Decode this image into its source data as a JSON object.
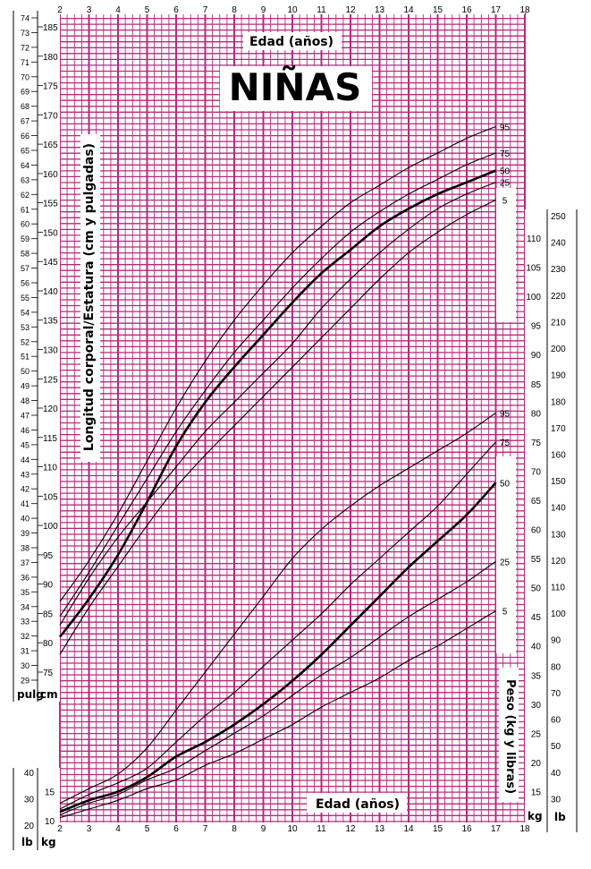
{
  "chart_data": {
    "type": "line",
    "title": "NIÑAS",
    "top_axis_label": "Edad (años)",
    "bottom_axis_label": "Edad (años)",
    "left_axis_label": "Longitud corporal/Estatura (cm y pulgadas)",
    "right_axis_label": "Peso (kg y libras)",
    "x_ticks": [
      2,
      3,
      4,
      5,
      6,
      7,
      8,
      9,
      10,
      11,
      12,
      13,
      14,
      15,
      16,
      17,
      18
    ],
    "xlim": [
      2,
      18
    ],
    "unit_labels": {
      "pulg": "pulg",
      "cm": "cm",
      "lb": "lb",
      "kg": "kg"
    },
    "stature_axis": {
      "cm_range": [
        75,
        185
      ],
      "inch_range": [
        29,
        74
      ],
      "cm_ticks": [
        75,
        80,
        85,
        90,
        95,
        100,
        105,
        110,
        115,
        120,
        125,
        130,
        135,
        140,
        145,
        150,
        155,
        160,
        165,
        170,
        175,
        180,
        185
      ]
    },
    "weight_axis": {
      "kg_range": [
        10,
        110
      ],
      "lb_range": [
        20,
        250
      ],
      "left_kg_ticks": [
        10,
        15
      ],
      "left_lb_ticks": [
        20,
        30,
        40
      ],
      "right_kg_ticks": [
        15,
        20,
        25,
        30,
        35,
        40,
        45,
        50,
        55,
        60,
        65,
        70,
        75,
        80,
        85,
        90,
        95,
        100,
        105,
        110
      ],
      "right_lb_ticks": [
        30,
        40,
        50,
        60,
        70,
        80,
        90,
        100,
        110,
        120,
        130,
        140,
        150,
        160,
        170,
        180,
        190,
        200,
        210,
        220,
        230,
        240,
        250
      ]
    },
    "stature_series": [
      {
        "name": "5",
        "x": [
          2,
          3,
          4,
          5,
          6,
          7,
          8,
          9,
          10,
          11,
          12,
          13,
          14,
          15,
          16,
          17
        ],
        "values": [
          78,
          86,
          93,
          100,
          106.5,
          112,
          117,
          122,
          127,
          132,
          137,
          142,
          146.5,
          150,
          153,
          155.5
        ]
      },
      {
        "name": "25",
        "x": [
          2,
          3,
          4,
          5,
          6,
          7,
          8,
          9,
          10,
          11,
          12,
          13,
          14,
          15,
          16,
          17
        ],
        "values": [
          83,
          91,
          98,
          104,
          110,
          116,
          121,
          126,
          131,
          137,
          142,
          146.5,
          150.5,
          154,
          156.5,
          158.5
        ]
      },
      {
        "name": "50",
        "x": [
          2,
          3,
          4,
          5,
          6,
          7,
          8,
          9,
          10,
          11,
          12,
          13,
          14,
          15,
          16,
          17
        ],
        "values": [
          81,
          87.5,
          95,
          104,
          113.5,
          121,
          127,
          132.5,
          138,
          143,
          147,
          151,
          154,
          156.5,
          158.5,
          160.5
        ]
      },
      {
        "name": "75",
        "x": [
          2,
          3,
          4,
          5,
          6,
          7,
          8,
          9,
          10,
          11,
          12,
          13,
          14,
          15,
          16,
          17
        ],
        "values": [
          84.5,
          92,
          100,
          108,
          116,
          123,
          129.5,
          135,
          140.5,
          145.5,
          150,
          153.5,
          156.5,
          159,
          161.5,
          163.5
        ]
      },
      {
        "name": "95",
        "x": [
          2,
          3,
          4,
          5,
          6,
          7,
          8,
          9,
          10,
          11,
          12,
          13,
          14,
          15,
          16,
          17
        ],
        "values": [
          87,
          94,
          102,
          111,
          120,
          128,
          135,
          141,
          146.5,
          151,
          155,
          158,
          161,
          163.5,
          166,
          168
        ]
      }
    ],
    "weight_series": [
      {
        "name": "5",
        "x": [
          2,
          3,
          4,
          5,
          6,
          7,
          8,
          9,
          10,
          11,
          12,
          13,
          14,
          15,
          16,
          17
        ],
        "values": [
          10.5,
          12,
          13.5,
          15.5,
          17,
          19.5,
          21.5,
          24,
          26.5,
          29.5,
          32,
          34.5,
          37.5,
          40,
          43,
          46
        ]
      },
      {
        "name": "25",
        "x": [
          2,
          3,
          4,
          5,
          6,
          7,
          8,
          9,
          10,
          11,
          12,
          13,
          14,
          15,
          16,
          17
        ],
        "values": [
          11,
          13,
          14.5,
          17,
          19,
          22,
          25,
          28,
          31.5,
          35,
          38,
          41.5,
          45,
          48,
          51,
          54.5
        ]
      },
      {
        "name": "50",
        "x": [
          2,
          3,
          4,
          5,
          6,
          7,
          8,
          9,
          10,
          11,
          12,
          13,
          14,
          15,
          16,
          17
        ],
        "values": [
          11.5,
          13.5,
          15,
          17.5,
          21,
          23.5,
          26.5,
          30,
          34,
          38.5,
          43.5,
          48.5,
          53.5,
          58,
          62.5,
          68
        ]
      },
      {
        "name": "75",
        "x": [
          2,
          3,
          4,
          5,
          6,
          7,
          8,
          9,
          10,
          11,
          12,
          13,
          14,
          15,
          16,
          17
        ],
        "values": [
          12,
          14.5,
          16.5,
          19,
          23.5,
          28,
          32,
          36.5,
          41,
          45.5,
          50.5,
          55,
          59.5,
          64,
          69.5,
          75
        ]
      },
      {
        "name": "95",
        "x": [
          2,
          3,
          4,
          5,
          6,
          7,
          8,
          9,
          10,
          11,
          12,
          13,
          14,
          15,
          16,
          17
        ],
        "values": [
          13,
          15.5,
          18,
          22.5,
          29,
          35.5,
          42,
          48.5,
          55,
          60,
          64,
          67.5,
          70.5,
          73.5,
          76.5,
          80
        ]
      }
    ],
    "colors": {
      "grid": "#b8287d",
      "background": "#ffffff",
      "ink": "#000000"
    },
    "grid": true
  }
}
